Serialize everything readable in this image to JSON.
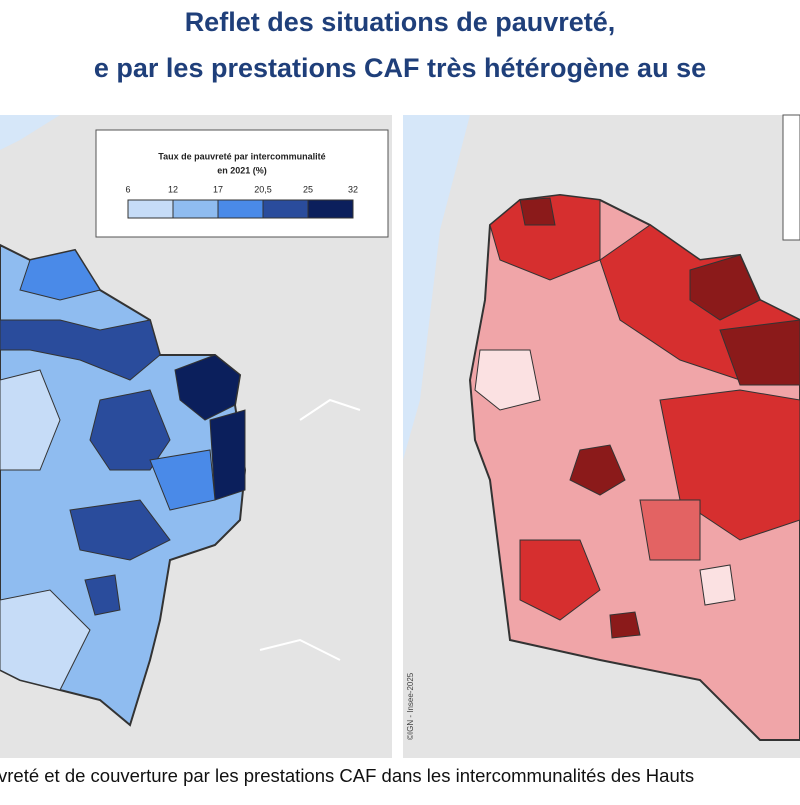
{
  "header": {
    "title_lines": [
      "Reflet des situations de pauvreté,",
      "e par les prestations CAF très hétérogène au se"
    ]
  },
  "legend": {
    "title_lines": [
      "Taux de pauvreté par intercommunalité",
      "en 2021 (%)"
    ],
    "breaks": [
      6,
      12,
      17,
      {
        "value": 20.5,
        "label": "20,5"
      },
      25,
      32
    ],
    "colors": [
      "#c6dcf7",
      "#8fbcf0",
      "#4a8ae8",
      "#2a4c9c",
      "#0b1f5c"
    ]
  },
  "credit": "©IGN - Insee-2025",
  "caption": "vreté et de couverture par les prestations CAF dans les intercommunalités des Hauts"
}
